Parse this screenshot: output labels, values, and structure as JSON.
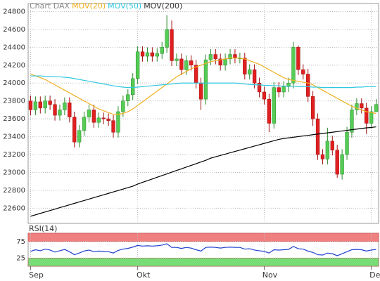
{
  "chart_data": [
    {
      "type": "candlestick",
      "title": "Chart DAX",
      "categories": [
        "Sep",
        null,
        null,
        null,
        null,
        null,
        null,
        null,
        null,
        null,
        null,
        null,
        null,
        null,
        null,
        null,
        null,
        null,
        null,
        null,
        null,
        null,
        "Okt",
        null,
        null,
        null,
        null,
        null,
        null,
        null,
        null,
        null,
        null,
        null,
        null,
        null,
        null,
        null,
        null,
        null,
        null,
        null,
        null,
        null,
        null,
        null,
        null,
        null,
        "Nov",
        null,
        null,
        null,
        null,
        null,
        null,
        null,
        null,
        null,
        null,
        null,
        null,
        null,
        null,
        null,
        null,
        null,
        null,
        null,
        null,
        null,
        "Dez",
        null
      ],
      "open": [
        23800,
        23700,
        23790,
        23720,
        23800,
        23760,
        23640,
        23700,
        23780,
        23620,
        23340,
        23470,
        23620,
        23700,
        23560,
        23610,
        23600,
        23580,
        23450,
        23680,
        23800,
        23870,
        24050,
        24350,
        24300,
        24340,
        24300,
        24330,
        24400,
        24600,
        24250,
        24270,
        24150,
        24250,
        24200,
        24000,
        23820,
        24260,
        24320,
        24270,
        24200,
        24270,
        24320,
        24280,
        24280,
        24100,
        24150,
        24000,
        23900,
        23820,
        23550,
        23950,
        23900,
        23960,
        24000,
        24400,
        24150,
        24100,
        23850,
        23600,
        23200,
        23150,
        23350,
        23250,
        22980,
        23200,
        23450,
        23700,
        23770,
        23720,
        23550,
        23680
      ],
      "high": [
        23860,
        23850,
        23850,
        23860,
        23860,
        23820,
        23760,
        23840,
        23840,
        23680,
        23530,
        23680,
        23760,
        23760,
        23670,
        23670,
        23660,
        23640,
        23740,
        23860,
        23930,
        24110,
        24410,
        24410,
        24400,
        24400,
        24390,
        24460,
        24760,
        24700,
        24330,
        24330,
        24310,
        24310,
        24260,
        24060,
        24320,
        24380,
        24380,
        24330,
        24330,
        24380,
        24380,
        24340,
        24340,
        24210,
        24210,
        24060,
        23960,
        23880,
        24010,
        24010,
        24020,
        24060,
        24460,
        24420,
        24210,
        24160,
        23910,
        23660,
        23260,
        23500,
        23410,
        23310,
        23260,
        23510,
        23760,
        23830,
        23830,
        23780,
        23740,
        23820
      ],
      "low": [
        23640,
        23640,
        23660,
        23660,
        23700,
        23580,
        23580,
        23640,
        23560,
        23280,
        23280,
        23410,
        23560,
        23500,
        23500,
        23540,
        23520,
        23390,
        23390,
        23620,
        23740,
        23810,
        23990,
        24240,
        24240,
        24240,
        24240,
        24270,
        24340,
        24190,
        24190,
        24090,
        24090,
        24140,
        23940,
        23700,
        23760,
        24200,
        24210,
        24140,
        24140,
        24210,
        24220,
        24220,
        24040,
        24040,
        23940,
        23840,
        23760,
        23450,
        23490,
        23840,
        23840,
        23900,
        23940,
        24090,
        24040,
        23790,
        23520,
        23140,
        23090,
        23090,
        23190,
        22940,
        22920,
        23140,
        23390,
        23640,
        23660,
        23430,
        23490,
        23700
      ],
      "close": [
        23700,
        23790,
        23720,
        23800,
        23760,
        23640,
        23700,
        23780,
        23620,
        23340,
        23470,
        23620,
        23700,
        23560,
        23610,
        23600,
        23580,
        23450,
        23680,
        23800,
        23870,
        24050,
        24350,
        24300,
        24340,
        24300,
        24330,
        24400,
        24600,
        24250,
        24270,
        24150,
        24250,
        24200,
        24000,
        23820,
        24260,
        24320,
        24270,
        24200,
        24270,
        24320,
        24280,
        24280,
        24100,
        24150,
        24000,
        23900,
        23820,
        23550,
        23950,
        23900,
        23960,
        24000,
        24400,
        24150,
        24100,
        23850,
        23600,
        23200,
        23150,
        23350,
        23250,
        22980,
        23200,
        23450,
        23700,
        23770,
        23720,
        23550,
        23680,
        23760
      ],
      "up_color": "#55cc55",
      "down_color": "#e02020",
      "series": [
        {
          "name": "MOV(20)",
          "color": "#f0b020",
          "values": [
            24100,
            24080,
            24060,
            24040,
            24010,
            23980,
            23950,
            23920,
            23890,
            23860,
            23830,
            23800,
            23770,
            23740,
            23710,
            23690,
            23670,
            23650,
            23650,
            23660,
            23680,
            23710,
            23750,
            23790,
            23830,
            23870,
            23910,
            23950,
            23990,
            24030,
            24070,
            24100,
            24130,
            24160,
            24180,
            24200,
            24220,
            24240,
            24250,
            24260,
            24270,
            24280,
            24280,
            24280,
            24270,
            24250,
            24230,
            24210,
            24180,
            24150,
            24120,
            24090,
            24060,
            24040,
            24030,
            24020,
            24010,
            24000,
            23980,
            23950,
            23920,
            23890,
            23860,
            23830,
            23800,
            23770,
            23740,
            23720,
            23700,
            23680,
            23670,
            23660
          ]
        },
        {
          "name": "MOV(50)",
          "color": "#30c8e0",
          "values": [
            24080,
            24080,
            24080,
            24075,
            24075,
            24070,
            24070,
            24065,
            24060,
            24050,
            24040,
            24030,
            24020,
            24010,
            24000,
            23990,
            23980,
            23970,
            23960,
            23955,
            23950,
            23950,
            23955,
            23960,
            23965,
            23970,
            23975,
            23980,
            23985,
            23990,
            23995,
            24000,
            24000,
            24000,
            24000,
            24000,
            24000,
            24000,
            24000,
            24000,
            24000,
            24000,
            24000,
            23995,
            23990,
            23985,
            23980,
            23980,
            23975,
            23975,
            23970,
            23970,
            23965,
            23965,
            23965,
            23960,
            23960,
            23960,
            23955,
            23955,
            23950,
            23950,
            23950,
            23950,
            23950,
            23950,
            23950,
            23955,
            23955,
            23960,
            23960,
            23960
          ]
        },
        {
          "name": "MOV(200)",
          "color": "#000000",
          "values": [
            22510,
            22526,
            22542,
            22558,
            22574,
            22590,
            22606,
            22622,
            22638,
            22654,
            22670,
            22686,
            22702,
            22718,
            22734,
            22750,
            22766,
            22782,
            22798,
            22814,
            22830,
            22846,
            22870,
            22889,
            22908,
            22927,
            22946,
            22965,
            22984,
            23003,
            23022,
            23041,
            23060,
            23079,
            23098,
            23117,
            23136,
            23160,
            23175,
            23190,
            23205,
            23220,
            23235,
            23250,
            23265,
            23280,
            23295,
            23310,
            23325,
            23340,
            23355,
            23370,
            23380,
            23387,
            23394,
            23401,
            23408,
            23415,
            23422,
            23429,
            23436,
            23443,
            23450,
            23457,
            23464,
            23471,
            23478,
            23485,
            23492,
            23499,
            23503,
            23510
          ]
        }
      ],
      "ylim": [
        22430,
        24890
      ],
      "yticks": [
        22600,
        22800,
        23000,
        23200,
        23400,
        23600,
        23800,
        24000,
        24200,
        24400,
        24600,
        24800
      ],
      "grid": true
    },
    {
      "type": "line",
      "title": "RSI(14)",
      "series": [
        {
          "color": "#2040d0",
          "values": [
            45,
            50,
            47,
            52,
            49,
            43,
            47,
            51,
            44,
            35,
            40,
            46,
            49,
            44,
            46,
            45,
            44,
            40,
            48,
            52,
            54,
            58,
            63,
            61,
            62,
            61,
            62,
            64,
            68,
            57,
            57,
            54,
            57,
            55,
            50,
            46,
            57,
            58,
            57,
            55,
            57,
            58,
            57,
            57,
            52,
            53,
            49,
            47,
            45,
            40,
            50,
            49,
            50,
            51,
            60,
            53,
            52,
            46,
            42,
            35,
            34,
            40,
            38,
            32,
            38,
            44,
            50,
            51,
            50,
            46,
            49,
            51
          ]
        }
      ],
      "ylim": [
        0,
        100
      ],
      "yticks": [
        25,
        75
      ],
      "band_colors": [
        "#77dd77",
        "#f08080"
      ],
      "grid": true
    }
  ]
}
